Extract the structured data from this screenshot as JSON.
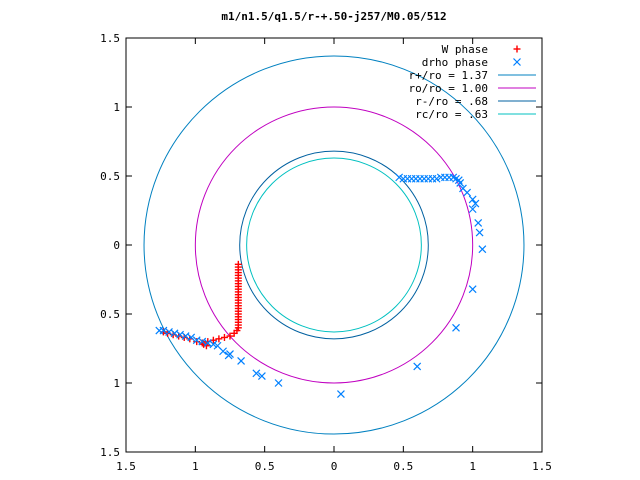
{
  "chart_data": {
    "type": "scatter",
    "title": "m1/n1.5/q1.5/r-+.50-j257/M0.05/512",
    "xlim": [
      -1.5,
      1.5
    ],
    "ylim": [
      -1.5,
      1.5
    ],
    "x_ticks": [
      {
        "value": -1.5,
        "label": "1.5"
      },
      {
        "value": -1,
        "label": "1"
      },
      {
        "value": -0.5,
        "label": "0.5"
      },
      {
        "value": 0,
        "label": "0"
      },
      {
        "value": 0.5,
        "label": "0.5"
      },
      {
        "value": 1,
        "label": "1"
      },
      {
        "value": 1.5,
        "label": "1.5"
      }
    ],
    "y_ticks": [
      {
        "value": 1.5,
        "label": "1.5"
      },
      {
        "value": 1,
        "label": "1"
      },
      {
        "value": 0.5,
        "label": "0.5"
      },
      {
        "value": 0,
        "label": "0"
      },
      {
        "value": -0.5,
        "label": "0.5"
      },
      {
        "value": -1,
        "label": "1"
      },
      {
        "value": -1.5,
        "label": "1.5"
      }
    ],
    "grid": false,
    "legend_position": "top-right",
    "series": [
      {
        "name": "W phase",
        "marker": "plus",
        "color": "#ff0000",
        "points": [
          [
            -0.69,
            -0.14
          ],
          [
            -0.69,
            -0.16
          ],
          [
            -0.69,
            -0.18
          ],
          [
            -0.69,
            -0.2
          ],
          [
            -0.69,
            -0.22
          ],
          [
            -0.69,
            -0.24
          ],
          [
            -0.69,
            -0.26
          ],
          [
            -0.69,
            -0.28
          ],
          [
            -0.69,
            -0.3
          ],
          [
            -0.69,
            -0.32
          ],
          [
            -0.69,
            -0.34
          ],
          [
            -0.69,
            -0.36
          ],
          [
            -0.69,
            -0.38
          ],
          [
            -0.69,
            -0.4
          ],
          [
            -0.69,
            -0.42
          ],
          [
            -0.69,
            -0.44
          ],
          [
            -0.69,
            -0.46
          ],
          [
            -0.69,
            -0.48
          ],
          [
            -0.69,
            -0.5
          ],
          [
            -0.69,
            -0.52
          ],
          [
            -0.69,
            -0.54
          ],
          [
            -0.69,
            -0.56
          ],
          [
            -0.69,
            -0.58
          ],
          [
            -0.69,
            -0.6
          ],
          [
            -0.7,
            -0.62
          ],
          [
            -0.72,
            -0.64
          ],
          [
            -0.75,
            -0.66
          ],
          [
            -0.79,
            -0.67
          ],
          [
            -0.83,
            -0.68
          ],
          [
            -0.87,
            -0.69
          ],
          [
            -0.91,
            -0.7
          ],
          [
            -0.95,
            -0.71
          ],
          [
            -0.99,
            -0.7
          ],
          [
            -1.04,
            -0.68
          ],
          [
            -1.08,
            -0.67
          ],
          [
            -1.12,
            -0.66
          ],
          [
            -1.16,
            -0.65
          ],
          [
            -1.2,
            -0.64
          ],
          [
            -1.23,
            -0.63
          ],
          [
            -0.94,
            -0.72
          ],
          [
            -0.92,
            -0.73
          ]
        ]
      },
      {
        "name": "drho phase",
        "marker": "cross",
        "color": "#0080ff",
        "points": [
          [
            0.47,
            0.49
          ],
          [
            0.5,
            0.48
          ],
          [
            0.53,
            0.48
          ],
          [
            0.56,
            0.48
          ],
          [
            0.59,
            0.48
          ],
          [
            0.62,
            0.48
          ],
          [
            0.65,
            0.48
          ],
          [
            0.68,
            0.48
          ],
          [
            0.71,
            0.48
          ],
          [
            0.74,
            0.48
          ],
          [
            0.77,
            0.49
          ],
          [
            0.8,
            0.49
          ],
          [
            0.83,
            0.49
          ],
          [
            0.86,
            0.49
          ],
          [
            0.88,
            0.48
          ],
          [
            0.9,
            0.47
          ],
          [
            0.91,
            0.45
          ],
          [
            0.93,
            0.41
          ],
          [
            0.96,
            0.38
          ],
          [
            1.0,
            0.33
          ],
          [
            1.0,
            0.26
          ],
          [
            1.02,
            0.3
          ],
          [
            1.04,
            0.16
          ],
          [
            1.05,
            0.09
          ],
          [
            1.07,
            -0.03
          ],
          [
            1.0,
            -0.32
          ],
          [
            0.88,
            -0.6
          ],
          [
            0.6,
            -0.88
          ],
          [
            0.05,
            -1.08
          ],
          [
            -0.4,
            -1.0
          ],
          [
            -0.52,
            -0.95
          ],
          [
            -0.56,
            -0.93
          ],
          [
            -0.67,
            -0.84
          ],
          [
            -0.75,
            -0.79
          ],
          [
            -0.76,
            -0.8
          ],
          [
            -0.8,
            -0.77
          ],
          [
            -0.84,
            -0.73
          ],
          [
            -0.87,
            -0.72
          ],
          [
            -0.91,
            -0.71
          ],
          [
            -0.95,
            -0.7
          ],
          [
            -0.99,
            -0.69
          ],
          [
            -1.03,
            -0.67
          ],
          [
            -1.07,
            -0.66
          ],
          [
            -1.11,
            -0.65
          ],
          [
            -1.15,
            -0.64
          ],
          [
            -1.19,
            -0.63
          ],
          [
            -1.23,
            -0.62
          ],
          [
            -1.26,
            -0.62
          ]
        ]
      },
      {
        "name": "r+/ro = 1.37",
        "type": "circle",
        "radius": 1.37,
        "color": "#0080c0"
      },
      {
        "name": "ro/ro = 1.00",
        "type": "circle",
        "radius": 1.0,
        "color": "#c000c0"
      },
      {
        "name": "r-/ro = .68",
        "type": "circle",
        "radius": 0.68,
        "color": "#0060a0"
      },
      {
        "name": "rc/ro = .63",
        "type": "circle",
        "radius": 0.63,
        "color": "#00c0c0"
      }
    ]
  }
}
